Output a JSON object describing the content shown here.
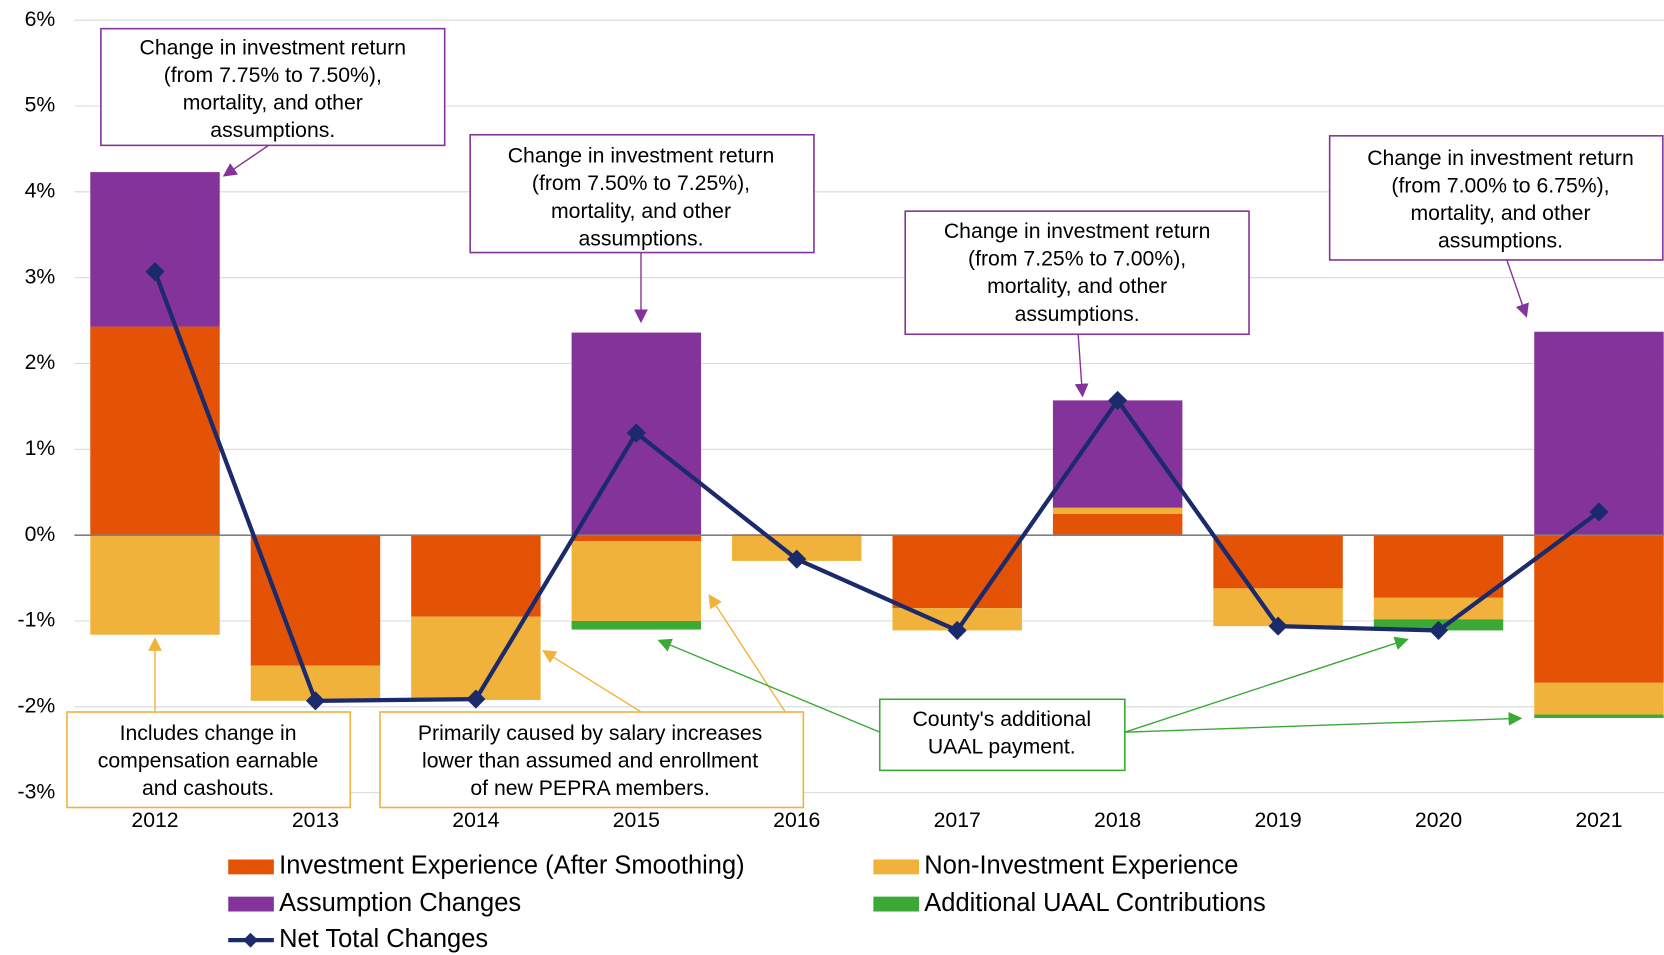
{
  "chart_data": {
    "type": "bar",
    "stacked": true,
    "categories": [
      "2012",
      "2013",
      "2014",
      "2015",
      "2016",
      "2017",
      "2018",
      "2019",
      "2020",
      "2021"
    ],
    "series": [
      {
        "name": "Investment Experience (After Smoothing)",
        "color": "#e35205",
        "values": [
          2.43,
          -1.52,
          -0.95,
          -0.07,
          0.01,
          -0.85,
          0.25,
          -0.62,
          -0.73,
          -1.72
        ]
      },
      {
        "name": "Non-Investment Experience",
        "color": "#f0b23a",
        "values": [
          -1.16,
          -0.41,
          -0.97,
          -0.93,
          -0.3,
          -0.26,
          0.07,
          -0.44,
          -0.25,
          -0.37
        ]
      },
      {
        "name": "Assumption Changes",
        "color": "#83339a",
        "values": [
          1.8,
          0,
          0,
          2.36,
          0,
          0,
          1.25,
          0,
          0,
          2.37
        ]
      },
      {
        "name": "Additional UAAL Contributions",
        "color": "#3aa935",
        "values": [
          0,
          0,
          0,
          -0.1,
          0,
          0,
          0,
          0,
          -0.13,
          -0.04
        ]
      },
      {
        "name": "Net Total Changes",
        "color": "#1b2a6b",
        "type": "line",
        "values": [
          3.07,
          -1.93,
          -1.91,
          1.19,
          -0.28,
          -1.11,
          1.57,
          -1.06,
          -1.11,
          0.27
        ]
      }
    ],
    "ylim": [
      -3,
      6
    ],
    "yticks": [
      {
        "value": -3,
        "label": "-3%"
      },
      {
        "value": -2,
        "label": "-2%"
      },
      {
        "value": -1,
        "label": "-1%"
      },
      {
        "value": 0,
        "label": "0%"
      },
      {
        "value": 1,
        "label": "1%"
      },
      {
        "value": 2,
        "label": "2%"
      },
      {
        "value": 3,
        "label": "3%"
      },
      {
        "value": 4,
        "label": "4%"
      },
      {
        "value": 5,
        "label": "5%"
      },
      {
        "value": 6,
        "label": "6%"
      }
    ],
    "grid": true,
    "annotations": [
      {
        "lines": [
          "Change in investment return",
          "(from 7.75% to 7.50%),",
          "mortality, and other",
          "assumptions."
        ]
      },
      {
        "lines": [
          "Change in investment return",
          "(from 7.50% to 7.25%),",
          "mortality, and other",
          "assumptions."
        ]
      },
      {
        "lines": [
          "Change in investment return",
          "(from 7.25% to 7.00%),",
          "mortality, and other",
          "assumptions."
        ]
      },
      {
        "lines": [
          "Change in investment return",
          "(from 7.00% to 6.75%),",
          "mortality, and other",
          "assumptions."
        ]
      },
      {
        "lines": [
          "Includes change in",
          "compensation earnable",
          "and cashouts."
        ]
      },
      {
        "lines": [
          "Primarily caused by salary increases",
          "lower than assumed and enrollment",
          "of new PEPRA members."
        ]
      },
      {
        "lines": [
          "County's additional",
          "UAAL payment."
        ]
      }
    ]
  }
}
